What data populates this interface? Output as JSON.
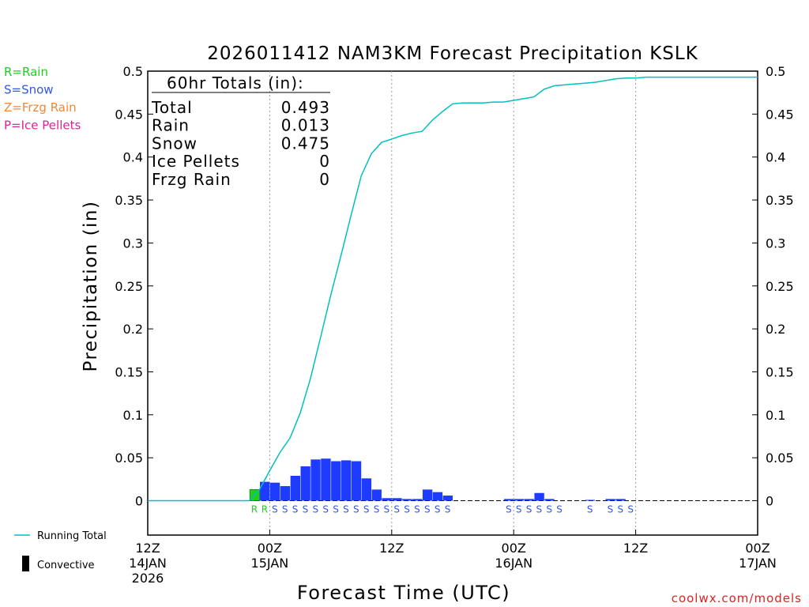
{
  "chart_data": {
    "type": "bar",
    "title": "2026011412 NAM3KM Forecast Precipitation KSLK",
    "ylabel": "Precipitation (in)",
    "xlabel": "Forecast Time (UTC)",
    "ylim": [
      -0.04,
      0.5
    ],
    "xlim_hours": [
      0,
      60
    ],
    "y_ticks": [
      0,
      0.05,
      0.1,
      0.15,
      0.2,
      0.25,
      0.3,
      0.35,
      0.4,
      0.45,
      0.5
    ],
    "y_tick_labels": [
      "0",
      "0.05",
      "0.1",
      "0.15",
      "0.2",
      "0.25",
      "0.3",
      "0.35",
      "0.4",
      "0.45",
      "0.5"
    ],
    "x_ticks": [
      {
        "hour": 0,
        "lines": [
          "12Z",
          "14JAN",
          "2026"
        ]
      },
      {
        "hour": 12,
        "lines": [
          "00Z",
          "15JAN"
        ]
      },
      {
        "hour": 24,
        "lines": [
          "12Z"
        ]
      },
      {
        "hour": 36,
        "lines": [
          "00Z",
          "16JAN"
        ]
      },
      {
        "hour": 48,
        "lines": [
          "12Z"
        ]
      },
      {
        "hour": 60,
        "lines": [
          "00Z",
          "17JAN"
        ]
      }
    ],
    "vertical_gridlines_hours": [
      12,
      24,
      36,
      48
    ],
    "legend_types": [
      {
        "code": "R",
        "label": "R=Rain",
        "color": "#22cc22"
      },
      {
        "code": "S",
        "label": "S=Snow",
        "color": "#3355ee"
      },
      {
        "code": "Z",
        "label": "Z=Frzg Rain",
        "color": "#ee8833"
      },
      {
        "code": "P",
        "label": "P=Ice Pellets",
        "color": "#dd2299"
      }
    ],
    "bottom_legend": [
      {
        "label": "Running Total",
        "color": "#00c0c0",
        "kind": "line"
      },
      {
        "label": "Convective",
        "color": "#000000",
        "kind": "bar"
      }
    ],
    "totals_box": {
      "header": "60hr Totals (in):",
      "rows": [
        {
          "label": "Total",
          "value": "0.493"
        },
        {
          "label": "Rain",
          "value": "0.013"
        },
        {
          "label": "Snow",
          "value": "0.475"
        },
        {
          "label": "Ice Pellets",
          "value": "0"
        },
        {
          "label": "Frzg Rain",
          "value": "0"
        }
      ]
    },
    "bar_hours": [
      11,
      12,
      13,
      14,
      15,
      16,
      17,
      18,
      19,
      20,
      21,
      22,
      23,
      24,
      25,
      26,
      27,
      28,
      29,
      30,
      31,
      32,
      33,
      34,
      35,
      36,
      37,
      38,
      39,
      40,
      41,
      42,
      43,
      44,
      45,
      46,
      47,
      48,
      49,
      50
    ],
    "bar_values": [
      0.013,
      0.022,
      0.021,
      0.017,
      0.029,
      0.04,
      0.048,
      0.049,
      0.046,
      0.047,
      0.046,
      0.026,
      0.013,
      0.003,
      0.003,
      0.002,
      0.002,
      0.013,
      0.01,
      0.006,
      0,
      0,
      0,
      0,
      0,
      0.002,
      0.002,
      0.002,
      0.009,
      0.002,
      0,
      0,
      0,
      0.001,
      0,
      0.002,
      0.002,
      0,
      0,
      0
    ],
    "bar_types": [
      "R",
      "S",
      "S",
      "S",
      "S",
      "S",
      "S",
      "S",
      "S",
      "S",
      "S",
      "S",
      "S",
      "S",
      "S",
      "S",
      "S",
      "S",
      "S",
      "S",
      "",
      "",
      "",
      "",
      "",
      "S",
      "S",
      "S",
      "S",
      "S",
      "",
      "",
      "",
      "S",
      "",
      "S",
      "S",
      "",
      "",
      ""
    ],
    "type_label_hours": [
      10.5,
      11.5,
      12.5,
      13.5,
      14.5,
      15.5,
      16.5,
      17.5,
      18.5,
      19.5,
      20.5,
      21.5,
      22.5,
      23.5,
      24.5,
      25.5,
      26.5,
      27.5,
      28.5,
      29.5,
      35.5,
      36.5,
      37.5,
      38.5,
      39.5,
      40.5,
      43.5,
      45.5,
      46.5,
      47.5
    ],
    "type_label_codes": [
      "R",
      "R",
      "S",
      "S",
      "S",
      "S",
      "S",
      "S",
      "S",
      "S",
      "S",
      "S",
      "S",
      "S",
      "S",
      "S",
      "S",
      "S",
      "S",
      "S",
      "S",
      "S",
      "S",
      "S",
      "S",
      "S",
      "S",
      "S",
      "S",
      "S"
    ],
    "running_total_hours": [
      0,
      1,
      2,
      3,
      4,
      5,
      6,
      7,
      8,
      9,
      10,
      11,
      12,
      13,
      14,
      15,
      16,
      17,
      18,
      19,
      20,
      21,
      22,
      23,
      24,
      25,
      26,
      27,
      28,
      29,
      30,
      31,
      32,
      33,
      34,
      35,
      36,
      37,
      38,
      39,
      40,
      41,
      42,
      43,
      44,
      45,
      46,
      47,
      48,
      49,
      50,
      51,
      52,
      53,
      54,
      55,
      56,
      57,
      58,
      59,
      60
    ],
    "running_total_values": [
      0,
      0,
      0,
      0,
      0,
      0,
      0,
      0,
      0,
      0,
      0,
      0.013,
      0.035,
      0.056,
      0.073,
      0.102,
      0.142,
      0.19,
      0.239,
      0.285,
      0.332,
      0.378,
      0.404,
      0.417,
      0.421,
      0.425,
      0.428,
      0.43,
      0.443,
      0.453,
      0.462,
      0.463,
      0.463,
      0.463,
      0.464,
      0.464,
      0.466,
      0.468,
      0.47,
      0.479,
      0.483,
      0.484,
      0.485,
      0.486,
      0.487,
      0.489,
      0.491,
      0.492,
      0.492,
      0.493,
      0.493,
      0.493,
      0.493,
      0.493,
      0.493,
      0.493,
      0.493,
      0.493,
      0.493,
      0.493,
      0.493
    ]
  },
  "watermark": "coolwx.com/models",
  "colors": {
    "running_total": "#00c0c0",
    "snow": "#1e3cff",
    "rain": "#22cc22",
    "grid": "#999999",
    "axis": "#000000"
  }
}
